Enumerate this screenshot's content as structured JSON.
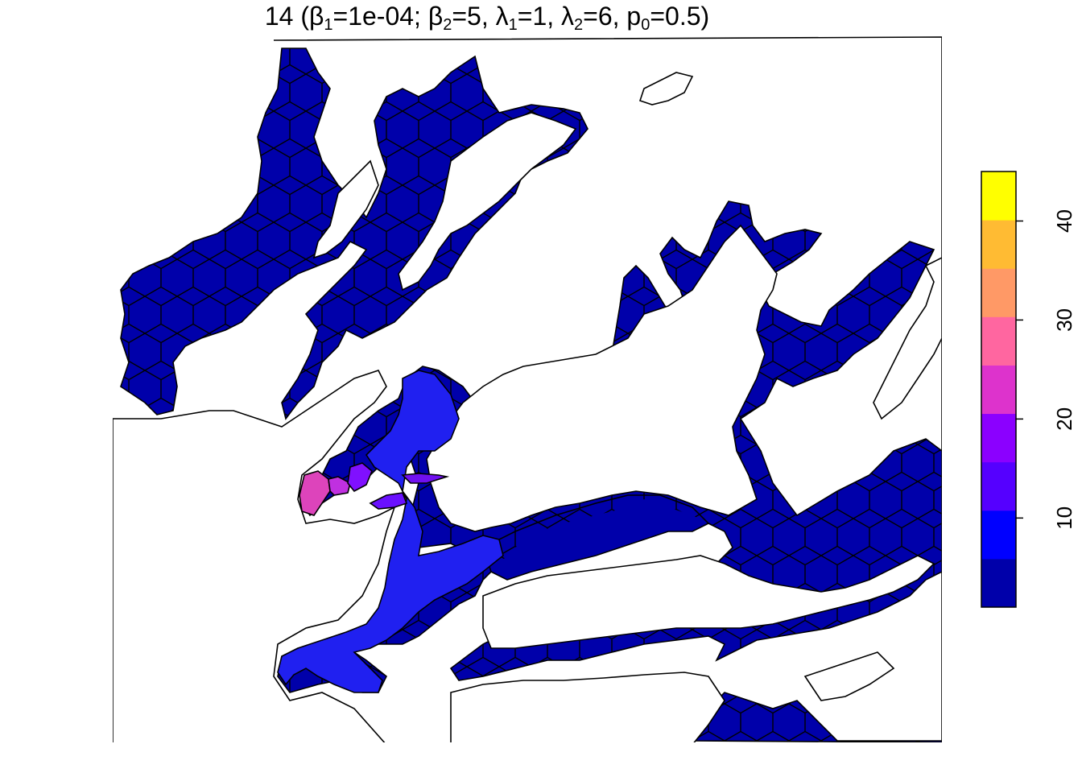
{
  "title": {
    "prefix": "14 (",
    "beta_sym": "β",
    "lambda_sym": "λ",
    "sub1": "1",
    "sub2": "2",
    "sub0": "0",
    "b1_val": "=1e-04; ",
    "b2_val": "=5, ",
    "l1_val": "=1, ",
    "l2_val": "=6, ",
    "p_sym": "p",
    "p0_val": "=0.5)"
  },
  "legend": {
    "min": 1,
    "max": 45,
    "ticks": [
      "10",
      "20",
      "30",
      "40"
    ],
    "tick_values": [
      10,
      20,
      30,
      40
    ],
    "colors": [
      "#0000aa",
      "#0000ff",
      "#5500ff",
      "#8b00ff",
      "#dd33cc",
      "#ff66a0",
      "#ff9966",
      "#ffbb33",
      "#ffff00"
    ]
  },
  "map": {
    "base_color": "#0000aa",
    "highlight_regions": [
      {
        "name": "region-pink",
        "value": 25,
        "color": "#dd44bb"
      },
      {
        "name": "region-magenta",
        "value": 22,
        "color": "#c030e0"
      },
      {
        "name": "region-violet-1",
        "value": 17,
        "color": "#8010ff"
      },
      {
        "name": "region-violet-2",
        "value": 15,
        "color": "#6a10ff"
      },
      {
        "name": "region-violet-3",
        "value": 16,
        "color": "#7010f0"
      },
      {
        "name": "region-blue-band",
        "value": 7,
        "color": "#2020f0"
      }
    ]
  }
}
